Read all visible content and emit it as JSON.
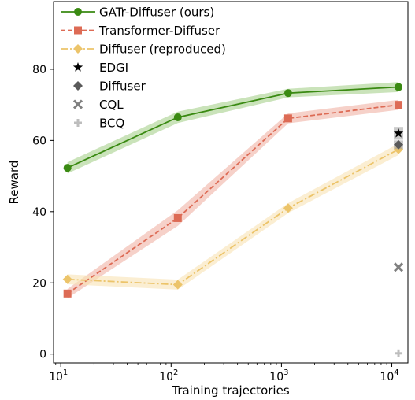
{
  "chart_data": {
    "type": "line",
    "xlabel": "Training trajectories",
    "ylabel": "Reward",
    "xscale": "log",
    "xlim": [
      8.6,
      14000
    ],
    "ylim": [
      -2.5,
      99
    ],
    "grid": false,
    "legend_position": "top-left",
    "x_ticks": [
      {
        "value": 10,
        "base": "10",
        "exp": "1"
      },
      {
        "value": 100,
        "base": "10",
        "exp": "2"
      },
      {
        "value": 1000,
        "base": "10",
        "exp": "3"
      },
      {
        "value": 10000,
        "base": "10",
        "exp": "4"
      }
    ],
    "y_ticks": [
      {
        "value": 0,
        "label": "0"
      },
      {
        "value": 20,
        "label": "20"
      },
      {
        "value": 40,
        "label": "40"
      },
      {
        "value": 60,
        "label": "60"
      },
      {
        "value": 80,
        "label": "80"
      }
    ],
    "series": [
      {
        "name": "GATr-Diffuser (ours)",
        "color": "#3a8a12",
        "band_color": "#a7d08c",
        "line_style": "solid",
        "marker": "circle",
        "x": [
          11.5,
          115,
          1150,
          11500
        ],
        "y": [
          52.3,
          66.5,
          73.3,
          75
        ],
        "band_half": [
          1.6,
          1.6,
          1.2,
          1.4
        ]
      },
      {
        "name": "Transformer-Diffuser",
        "color": "#dd6b55",
        "band_color": "#f0b2a5",
        "line_style": "dashed",
        "marker": "square",
        "x": [
          11.5,
          115,
          1150,
          11500
        ],
        "y": [
          17,
          38.2,
          66.2,
          70
        ],
        "band_half": [
          1.3,
          2.2,
          1.4,
          1.4
        ]
      },
      {
        "name": "Diffuser (reproduced)",
        "color": "#ecc46a",
        "band_color": "#f9e2b4",
        "line_style": "dashdot",
        "marker": "diamond",
        "x": [
          11.5,
          115,
          1150,
          11500
        ],
        "y": [
          21,
          19.5,
          41,
          57.5
        ],
        "band_half": [
          1.4,
          1.4,
          1.4,
          1.6
        ]
      }
    ],
    "baselines": [
      {
        "name": "EDGI",
        "marker": "star",
        "color": "#000000",
        "x": 11500,
        "y": 62,
        "err": 1.8
      },
      {
        "name": "Diffuser",
        "marker": "diamond",
        "color": "#5a5a5a",
        "x": 11500,
        "y": 58.8,
        "err": 1.2
      },
      {
        "name": "CQL",
        "marker": "x",
        "color": "#808080",
        "x": 11500,
        "y": 24.4,
        "err": 0
      },
      {
        "name": "BCQ",
        "marker": "plus",
        "color": "#bdbdbd",
        "x": 11500,
        "y": 0.2,
        "err": 0
      }
    ]
  }
}
